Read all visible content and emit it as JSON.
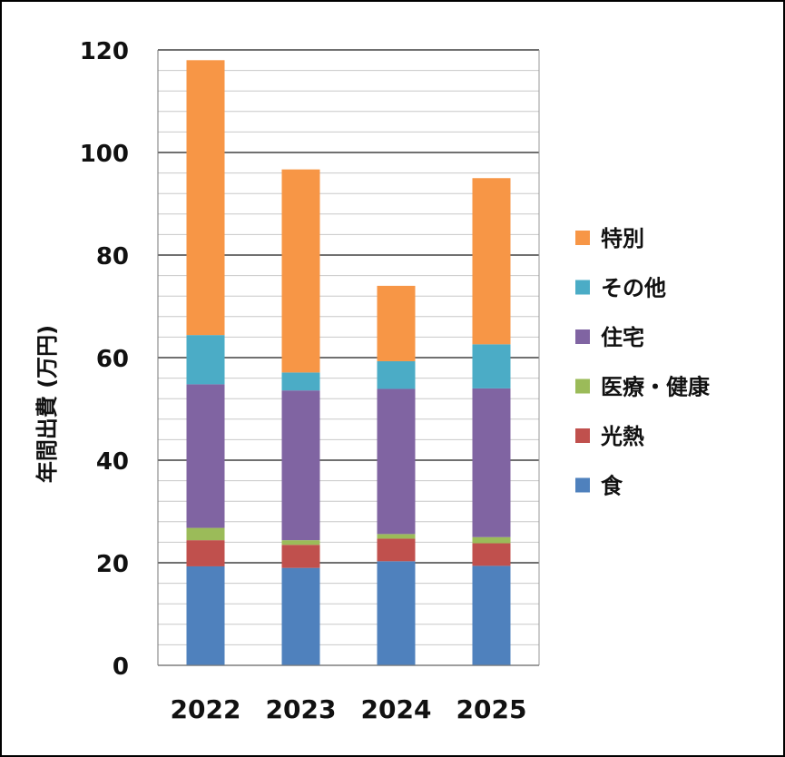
{
  "chart_data": {
    "type": "bar",
    "stacked": true,
    "categories": [
      "2022",
      "2023",
      "2024",
      "2025"
    ],
    "ylabel": "年間出費 (万円)",
    "ylim": [
      0,
      120
    ],
    "yticks": [
      0,
      20,
      40,
      60,
      80,
      100,
      120
    ],
    "grid": "major and minor horizontal gridlines",
    "legend_position": "right",
    "series": [
      {
        "name": "食",
        "color": "#4F81BD",
        "values": [
          19.3,
          19.0,
          20.3,
          19.4
        ]
      },
      {
        "name": "光熱",
        "color": "#C0504D",
        "values": [
          5.1,
          4.5,
          4.4,
          4.4
        ]
      },
      {
        "name": "医療・健康",
        "color": "#9BBB59",
        "values": [
          2.4,
          0.9,
          0.9,
          1.2
        ]
      },
      {
        "name": "住宅",
        "color": "#8064A2",
        "values": [
          28.0,
          29.2,
          28.3,
          29.0
        ]
      },
      {
        "name": "その他",
        "color": "#4BACC6",
        "values": [
          9.6,
          3.5,
          5.4,
          8.6
        ]
      },
      {
        "name": "特別",
        "color": "#F79646",
        "values": [
          53.6,
          39.6,
          14.7,
          32.4
        ]
      }
    ]
  }
}
